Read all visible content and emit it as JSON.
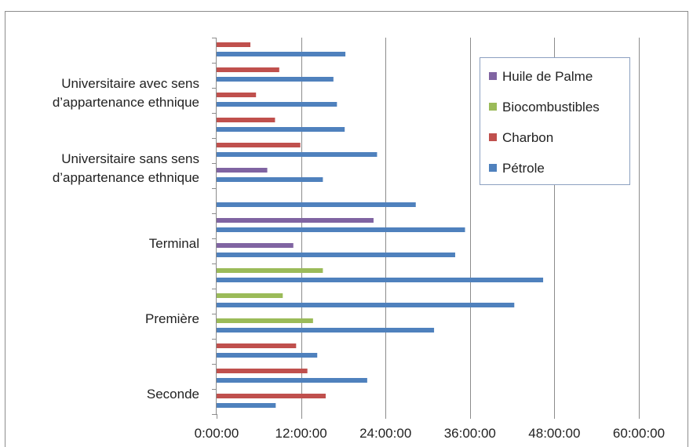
{
  "chart_data": {
    "type": "bar",
    "orientation": "horizontal",
    "grid": true,
    "legend_position": "top-right",
    "x_ticks": [
      "0:00:00",
      "12:00:00",
      "24:00:00",
      "36:00:00",
      "48:00:00",
      "60:00:00"
    ],
    "x_range_hours": [
      0,
      60
    ],
    "category_labels": [
      {
        "text": [
          "Seconde"
        ],
        "slot": 0.5
      },
      {
        "text": [
          "Première"
        ],
        "slot": 3.5
      },
      {
        "text": [
          "Terminal"
        ],
        "slot": 6.5
      },
      {
        "text": [
          "Universitaire sans sens",
          "d’appartenance ethnique"
        ],
        "slot": 9.5
      },
      {
        "text": [
          "Universitaire avec sens",
          "d’appartenance ethnique"
        ],
        "slot": 12.5
      }
    ],
    "series": [
      {
        "name": "Pétrole",
        "color": "#4f81bd",
        "bars": [
          {
            "slot": 0,
            "hours": 8.4
          },
          {
            "slot": 1,
            "hours": 21.4
          },
          {
            "slot": 2,
            "hours": 14.3
          },
          {
            "slot": 3,
            "hours": 30.9
          },
          {
            "slot": 4,
            "hours": 42.3
          },
          {
            "slot": 5,
            "hours": 46.4
          },
          {
            "slot": 6,
            "hours": 33.9
          },
          {
            "slot": 7,
            "hours": 35.3
          },
          {
            "slot": 8,
            "hours": 28.3
          },
          {
            "slot": 9,
            "hours": 15.1
          },
          {
            "slot": 10,
            "hours": 22.8
          },
          {
            "slot": 11,
            "hours": 18.2
          },
          {
            "slot": 12,
            "hours": 17.1
          },
          {
            "slot": 13,
            "hours": 16.6
          },
          {
            "slot": 14,
            "hours": 18.3
          }
        ]
      },
      {
        "name": "Charbon",
        "color": "#c0504d",
        "bars": [
          {
            "slot": 0,
            "hours": 15.5
          },
          {
            "slot": 1,
            "hours": 12.9
          },
          {
            "slot": 2,
            "hours": 11.3
          },
          {
            "slot": 10,
            "hours": 11.9
          },
          {
            "slot": 11,
            "hours": 8.3
          },
          {
            "slot": 12,
            "hours": 5.6
          },
          {
            "slot": 13,
            "hours": 8.9
          },
          {
            "slot": 14,
            "hours": 4.8
          }
        ]
      },
      {
        "name": "Biocombustibles",
        "color": "#9bbb59",
        "bars": [
          {
            "slot": 3,
            "hours": 13.7
          },
          {
            "slot": 4,
            "hours": 9.4
          },
          {
            "slot": 5,
            "hours": 15.1
          }
        ]
      },
      {
        "name": "Huile de Palme",
        "color": "#8064a2",
        "bars": [
          {
            "slot": 6,
            "hours": 10.9
          },
          {
            "slot": 7,
            "hours": 22.3
          },
          {
            "slot": 9,
            "hours": 7.2
          }
        ]
      }
    ],
    "legend_order": [
      "Huile de Palme",
      "Biocombustibles",
      "Charbon",
      "Pétrole"
    ]
  }
}
